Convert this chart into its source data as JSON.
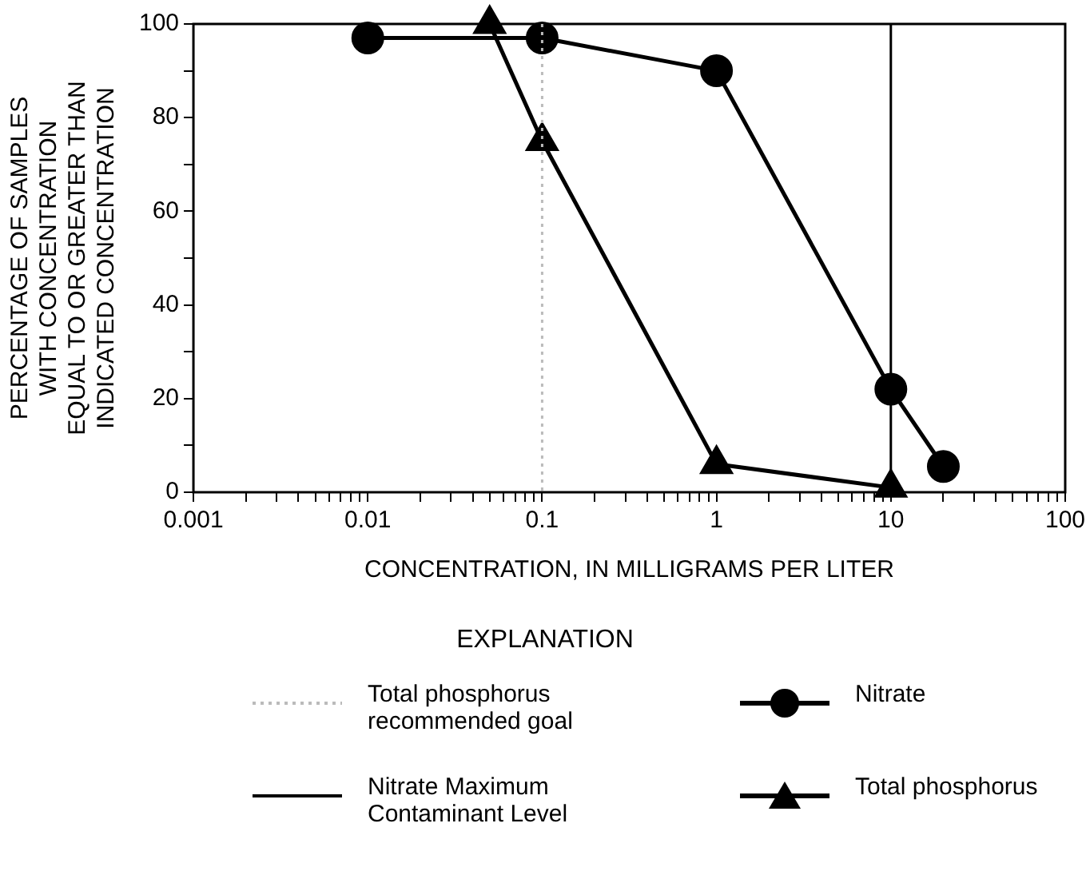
{
  "chart_data": {
    "type": "line",
    "xlabel": "CONCENTRATION, IN MILLIGRAMS PER LITER",
    "ylabel": "PERCENTAGE OF SAMPLES\nWITH CONCENTRATION\nEQUAL TO OR GREATER THAN\nINDICATED CONCENTRATION",
    "legend_title": "EXPLANATION",
    "log": "x",
    "xlim": [
      0.001,
      100
    ],
    "ylim": [
      0,
      100
    ],
    "xticks": [
      0.001,
      {
        "value": 0.002,
        "label": null
      },
      {
        "value": 0.003,
        "label": null
      },
      {
        "value": 0.004,
        "label": null
      },
      {
        "value": 0.005,
        "label": null
      },
      {
        "value": 0.006,
        "label": null
      },
      {
        "value": 0.007,
        "label": null
      },
      {
        "value": 0.008,
        "label": null
      },
      {
        "value": 0.009,
        "label": null
      },
      0.01,
      {
        "value": 0.02,
        "label": null
      },
      {
        "value": 0.03,
        "label": null
      },
      {
        "value": 0.04,
        "label": null
      },
      {
        "value": 0.05,
        "label": null
      },
      {
        "value": 0.06,
        "label": null
      },
      {
        "value": 0.07,
        "label": null
      },
      {
        "value": 0.08,
        "label": null
      },
      {
        "value": 0.09,
        "label": null
      },
      0.1,
      {
        "value": 0.2,
        "label": null
      },
      {
        "value": 0.3,
        "label": null
      },
      {
        "value": 0.4,
        "label": null
      },
      {
        "value": 0.5,
        "label": null
      },
      {
        "value": 0.6,
        "label": null
      },
      {
        "value": 0.7,
        "label": null
      },
      {
        "value": 0.8,
        "label": null
      },
      {
        "value": 0.9,
        "label": null
      },
      1,
      {
        "value": 2,
        "label": null
      },
      {
        "value": 3,
        "label": null
      },
      {
        "value": 4,
        "label": null
      },
      {
        "value": 5,
        "label": null
      },
      {
        "value": 6,
        "label": null
      },
      {
        "value": 7,
        "label": null
      },
      {
        "value": 8,
        "label": null
      },
      {
        "value": 9,
        "label": null
      },
      10,
      {
        "value": 20,
        "label": null
      },
      {
        "value": 30,
        "label": null
      },
      {
        "value": 40,
        "label": null
      },
      {
        "value": 50,
        "label": null
      },
      {
        "value": 60,
        "label": null
      },
      {
        "value": 70,
        "label": null
      },
      {
        "value": 80,
        "label": null
      },
      {
        "value": 90,
        "label": null
      },
      100
    ],
    "yticks": [
      0,
      {
        "value": 10,
        "label": null
      },
      20,
      {
        "value": 30,
        "label": null
      },
      40,
      {
        "value": 50,
        "label": null
      },
      60,
      {
        "value": 70,
        "label": null
      },
      80,
      {
        "value": 90,
        "label": null
      },
      100
    ],
    "grid": false,
    "legend": "bottom",
    "line_style": "solid",
    "series": [
      {
        "name": "Nitrate",
        "color": "#000000",
        "marker": "circle",
        "x": [
          0.01,
          0.1,
          1,
          10,
          20
        ],
        "values": [
          97,
          97,
          90,
          22,
          5.5
        ]
      },
      {
        "name": "Total phosphorus",
        "color": "#000000",
        "marker": "triangle",
        "x": [
          0.05,
          0.1,
          1,
          10
        ],
        "values": [
          100,
          75,
          6,
          1
        ]
      }
    ],
    "ref_lines": [
      {
        "axis": "x",
        "value": 0.1,
        "label": "Total phosphorus recommended goal",
        "color": "#bbbbbb",
        "line_style": "dotted"
      },
      {
        "axis": "x",
        "value": 10,
        "label": "Nitrate Maximum Contaminant Level",
        "color": "#000000",
        "line_style": "solid"
      }
    ]
  }
}
